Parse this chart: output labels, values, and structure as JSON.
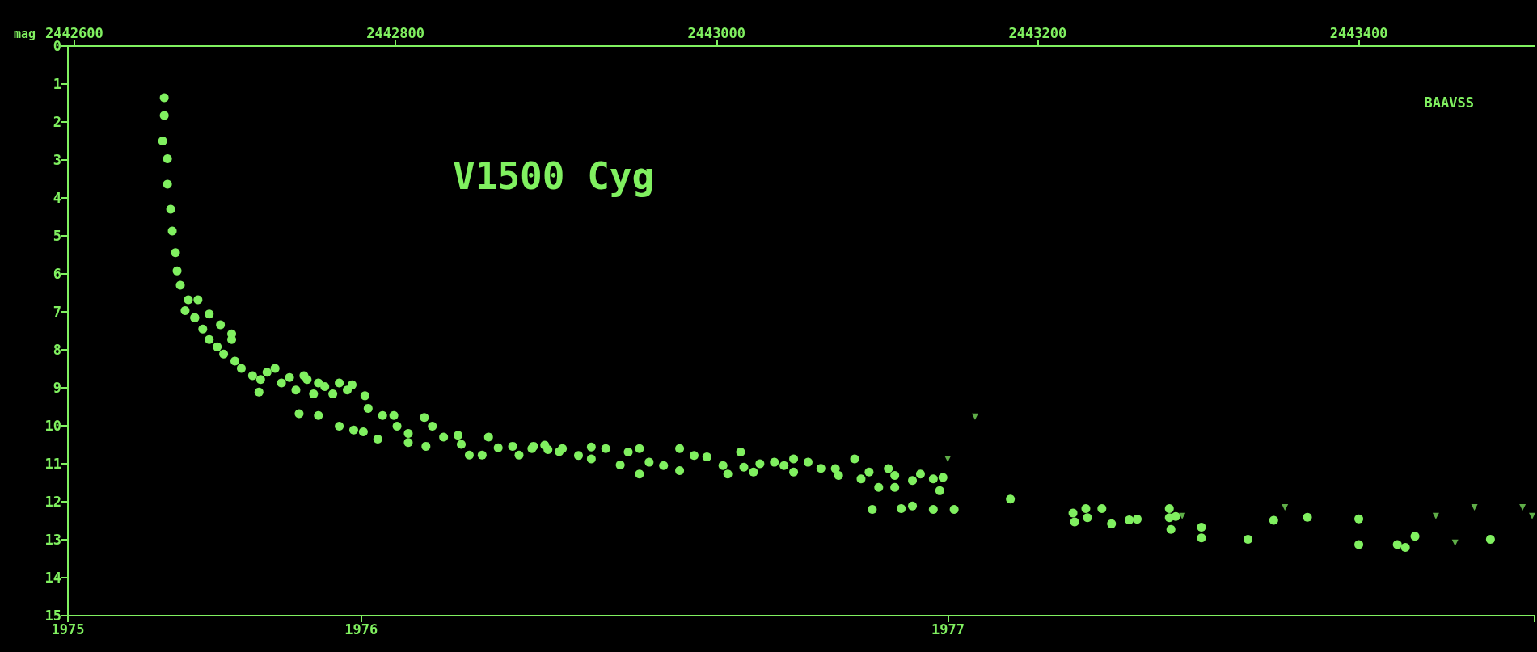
{
  "chart_data": {
    "type": "scatter",
    "title": "V1500 Cyg",
    "ylabel": "mag",
    "annotations": [
      "BAAVSS"
    ],
    "xlim": [
      1975.5,
      1978
    ],
    "xticks": [
      {
        "value": 1975.5,
        "label": "1975"
      },
      1976,
      1977,
      {
        "value": 1978,
        "label": null
      }
    ],
    "x2lim": [
      2442596,
      2443509.5
    ],
    "x2ticks": [
      2442600,
      2442800,
      2443000,
      2443200,
      2443400
    ],
    "ylim": [
      15,
      0
    ],
    "yticks": [
      0,
      1,
      2,
      3,
      4,
      5,
      6,
      7,
      8,
      9,
      10,
      11,
      12,
      13,
      14,
      15
    ],
    "series": [
      {
        "axis": "x2",
        "marker": "circle",
        "color": "#80f060",
        "x": [
          2442656,
          2442656,
          2442655,
          2442658,
          2442658,
          2442660,
          2442661,
          2442663,
          2442664,
          2442666,
          2442671,
          2442677,
          2442675,
          2442684,
          2442691,
          2442698,
          2442669,
          2442675,
          2442680,
          2442684,
          2442689,
          2442693,
          2442698,
          2442700,
          2442704,
          2442711,
          2442716,
          2442715,
          2442720,
          2442725,
          2442729,
          2442734,
          2442738,
          2442743,
          2442745,
          2442749,
          2442752,
          2442756,
          2442761,
          2442765,
          2442770,
          2442773,
          2442781,
          2442783,
          2442740,
          2442752,
          2442765,
          2442774,
          2442780,
          2442789,
          2442792,
          2442799,
          2442801,
          2442808,
          2442808,
          2442818,
          2442819,
          2442823,
          2442830,
          2442839,
          2442841,
          2442846,
          2442854,
          2442858,
          2442864,
          2442873,
          2442877,
          2442886,
          2442895,
          2442902,
          2442885,
          2442893,
          2442904,
          2442914,
          2442922,
          2442922,
          2442931,
          2442940,
          2442945,
          2442952,
          2442952,
          2442958,
          2442967,
          2442977,
          2442977,
          2442986,
          2442994,
          2443004,
          2443007,
          2443015,
          2443017,
          2443023,
          2443027,
          2443036,
          2443042,
          2443048,
          2443048,
          2443057,
          2443065,
          2443074,
          2443076,
          2443086,
          2443090,
          2443095,
          2443101,
          2443107,
          2443111,
          2443111,
          2443122,
          2443127,
          2443135,
          2443139,
          2443141,
          2443097,
          2443115,
          2443122,
          2443135,
          2443148,
          2443183,
          2443222,
          2443223,
          2443230,
          2443231,
          2443240,
          2443246,
          2443257,
          2443262,
          2443282,
          2443282,
          2443283,
          2443286,
          2443302,
          2443302,
          2443331,
          2443347,
          2443368,
          2443400,
          2443400,
          2443424,
          2443429,
          2443435,
          2443482
        ],
        "values": [
          1.36,
          1.83,
          2.5,
          2.97,
          3.64,
          4.3,
          4.87,
          5.44,
          5.92,
          6.3,
          6.68,
          6.68,
          7.15,
          7.06,
          7.34,
          7.58,
          6.97,
          7.16,
          7.45,
          7.73,
          7.92,
          8.11,
          7.73,
          8.3,
          8.49,
          8.68,
          8.78,
          9.11,
          8.59,
          8.49,
          8.87,
          8.73,
          9.06,
          8.68,
          8.78,
          9.16,
          8.87,
          8.97,
          9.16,
          8.87,
          9.06,
          8.92,
          9.21,
          9.54,
          9.68,
          9.73,
          10.01,
          10.11,
          10.16,
          10.35,
          9.73,
          9.73,
          10.01,
          10.2,
          10.44,
          9.78,
          10.54,
          10.01,
          10.3,
          10.25,
          10.49,
          10.77,
          10.77,
          10.3,
          10.58,
          10.54,
          10.77,
          10.54,
          10.63,
          10.68,
          10.6,
          10.51,
          10.6,
          10.78,
          10.56,
          10.87,
          10.6,
          11.03,
          10.69,
          10.6,
          11.27,
          10.96,
          11.05,
          10.6,
          11.18,
          10.78,
          10.82,
          11.05,
          11.27,
          10.69,
          11.09,
          11.22,
          11.0,
          10.96,
          11.05,
          10.87,
          11.22,
          10.96,
          11.12,
          11.13,
          11.31,
          10.87,
          11.4,
          11.22,
          11.62,
          11.13,
          11.31,
          11.62,
          11.44,
          11.27,
          11.4,
          11.71,
          11.36,
          12.2,
          12.18,
          12.11,
          12.2,
          12.2,
          11.93,
          12.3,
          12.53,
          12.18,
          12.42,
          12.18,
          12.58,
          12.48,
          12.46,
          12.18,
          12.42,
          12.73,
          12.39,
          12.67,
          12.95,
          12.99,
          12.49,
          12.41,
          12.45,
          13.13,
          13.13,
          13.2,
          12.91,
          12.99
        ]
      },
      {
        "axis": "x2",
        "marker": "triangle",
        "color": "#5fae48",
        "x": [
          2443144,
          2443161,
          2443290,
          2443354,
          2443448,
          2443460,
          2443472,
          2443502,
          2443508
        ],
        "values": [
          10.87,
          9.76,
          12.38,
          12.15,
          12.38,
          13.08,
          12.15,
          12.15,
          12.38
        ]
      }
    ]
  }
}
